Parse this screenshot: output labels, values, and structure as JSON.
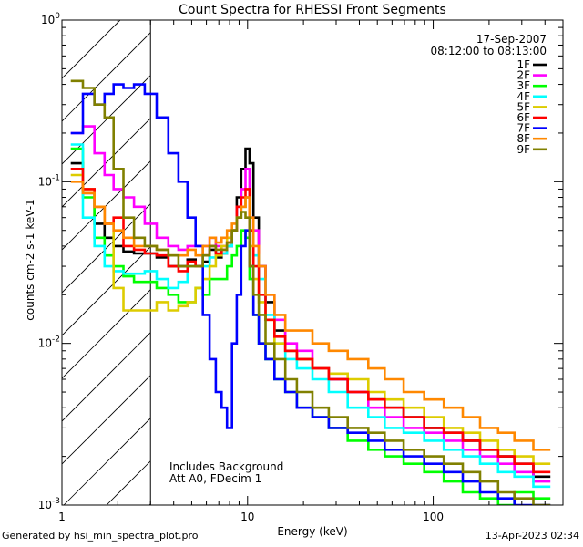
{
  "chart_data": {
    "type": "line",
    "title": "Count Spectra for RHESSI Front Segments",
    "xlabel": "Energy (keV)",
    "ylabel": "counts cm-2 s-1 keV-1",
    "xscale": "log",
    "yscale": "log",
    "xlim": [
      1,
      500
    ],
    "ylim": [
      0.001,
      1
    ],
    "x_tick_labels": [
      "1",
      "10",
      "100"
    ],
    "y_tick_labels": [
      {
        "base": "10",
        "exp": "0"
      },
      {
        "base": "10",
        "exp": "-1"
      },
      {
        "base": "10",
        "exp": "-2"
      },
      {
        "base": "10",
        "exp": "-3"
      }
    ],
    "date": "17-Sep-2007",
    "time_range": "08:12:00 to 08:13:00",
    "excluded_region_max_kev": 3,
    "annotations": [
      "Includes Background",
      "Att A0, FDecim 1"
    ],
    "energies": [
      1.2,
      1.4,
      1.6,
      1.8,
      2.0,
      2.3,
      2.6,
      3.0,
      3.5,
      4.0,
      4.5,
      5.0,
      5.5,
      6.0,
      6.5,
      7.0,
      7.5,
      8.0,
      8.5,
      9.0,
      9.5,
      10.0,
      10.5,
      11.0,
      12.0,
      13.0,
      15.0,
      17.0,
      20.0,
      25.0,
      30.0,
      40.0,
      50.0,
      60.0,
      80.0,
      100.0,
      130.0,
      160.0,
      200.0,
      250.0,
      300.0,
      400.0
    ],
    "series": [
      {
        "name": "1F",
        "color": "#000000",
        "values": [
          0.13,
          0.085,
          0.055,
          0.045,
          0.04,
          0.037,
          0.036,
          0.036,
          0.034,
          0.03,
          0.03,
          0.033,
          0.03,
          0.032,
          0.038,
          0.034,
          0.036,
          0.04,
          0.05,
          0.08,
          0.12,
          0.16,
          0.13,
          0.06,
          0.03,
          0.018,
          0.012,
          0.009,
          0.008,
          0.007,
          0.006,
          0.005,
          0.0045,
          0.004,
          0.0035,
          0.003,
          0.0028,
          0.0025,
          0.0022,
          0.002,
          0.0018,
          0.0015
        ]
      },
      {
        "name": "2F",
        "color": "#ff00ff",
        "values": [
          0.2,
          0.22,
          0.15,
          0.11,
          0.09,
          0.08,
          0.07,
          0.055,
          0.045,
          0.04,
          0.038,
          0.04,
          0.04,
          0.04,
          0.045,
          0.04,
          0.04,
          0.042,
          0.05,
          0.07,
          0.09,
          0.12,
          0.06,
          0.05,
          0.03,
          0.02,
          0.014,
          0.01,
          0.009,
          0.007,
          0.006,
          0.005,
          0.004,
          0.0035,
          0.003,
          0.0028,
          0.0025,
          0.0022,
          0.002,
          0.0018,
          0.0016,
          0.0014
        ]
      },
      {
        "name": "3F",
        "color": "#00ff00",
        "values": [
          0.16,
          0.08,
          0.045,
          0.035,
          0.03,
          0.026,
          0.024,
          0.024,
          0.022,
          0.02,
          0.018,
          0.018,
          0.022,
          0.02,
          0.025,
          0.025,
          0.025,
          0.03,
          0.035,
          0.04,
          0.05,
          0.045,
          0.025,
          0.015,
          0.01,
          0.008,
          0.006,
          0.005,
          0.004,
          0.0035,
          0.003,
          0.0025,
          0.0022,
          0.002,
          0.0018,
          0.0016,
          0.0014,
          0.0012,
          0.0011,
          0.001,
          0.0012,
          0.0011
        ]
      },
      {
        "name": "4F",
        "color": "#00ffff",
        "values": [
          0.17,
          0.06,
          0.04,
          0.03,
          0.028,
          0.027,
          0.027,
          0.028,
          0.025,
          0.022,
          0.024,
          0.03,
          0.03,
          0.03,
          0.034,
          0.036,
          0.036,
          0.04,
          0.05,
          0.06,
          0.07,
          0.08,
          0.05,
          0.035,
          0.025,
          0.015,
          0.01,
          0.008,
          0.007,
          0.006,
          0.005,
          0.004,
          0.0035,
          0.003,
          0.0028,
          0.0025,
          0.0022,
          0.002,
          0.0018,
          0.0016,
          0.0015,
          0.0013
        ]
      },
      {
        "name": "5F",
        "color": "#ddcc00",
        "values": [
          0.11,
          0.09,
          0.07,
          0.055,
          0.022,
          0.016,
          0.016,
          0.016,
          0.018,
          0.016,
          0.017,
          0.018,
          0.022,
          0.025,
          0.03,
          0.035,
          0.04,
          0.045,
          0.05,
          0.06,
          0.07,
          0.08,
          0.04,
          0.025,
          0.018,
          0.014,
          0.01,
          0.009,
          0.008,
          0.007,
          0.0065,
          0.006,
          0.005,
          0.0045,
          0.004,
          0.0035,
          0.003,
          0.0028,
          0.0025,
          0.0022,
          0.002,
          0.0018
        ]
      },
      {
        "name": "6F",
        "color": "#ff0000",
        "values": [
          0.12,
          0.09,
          0.07,
          0.055,
          0.06,
          0.04,
          0.038,
          0.036,
          0.035,
          0.03,
          0.028,
          0.032,
          0.03,
          0.035,
          0.04,
          0.036,
          0.038,
          0.042,
          0.05,
          0.07,
          0.08,
          0.09,
          0.05,
          0.03,
          0.02,
          0.014,
          0.011,
          0.009,
          0.008,
          0.007,
          0.006,
          0.005,
          0.0045,
          0.004,
          0.0035,
          0.003,
          0.0028,
          0.0025,
          0.0022,
          0.002,
          0.0018,
          0.0016
        ]
      },
      {
        "name": "7F",
        "color": "#0000ff",
        "values": [
          0.2,
          0.35,
          0.3,
          0.35,
          0.4,
          0.38,
          0.4,
          0.35,
          0.25,
          0.15,
          0.1,
          0.06,
          0.04,
          0.015,
          0.008,
          0.005,
          0.004,
          0.003,
          0.01,
          0.02,
          0.04,
          0.05,
          0.03,
          0.015,
          0.01,
          0.008,
          0.006,
          0.005,
          0.004,
          0.0035,
          0.003,
          0.0028,
          0.0025,
          0.0022,
          0.002,
          0.0018,
          0.0016,
          0.0014,
          0.0012,
          0.0011,
          0.001,
          0.001
        ]
      },
      {
        "name": "8F",
        "color": "#ff8800",
        "values": [
          0.1,
          0.085,
          0.07,
          0.055,
          0.05,
          0.045,
          0.04,
          0.04,
          0.038,
          0.035,
          0.035,
          0.038,
          0.035,
          0.04,
          0.045,
          0.042,
          0.045,
          0.05,
          0.055,
          0.06,
          0.07,
          0.08,
          0.06,
          0.04,
          0.03,
          0.02,
          0.015,
          0.012,
          0.012,
          0.01,
          0.009,
          0.008,
          0.007,
          0.006,
          0.005,
          0.0045,
          0.004,
          0.0035,
          0.003,
          0.0028,
          0.0025,
          0.0022
        ]
      },
      {
        "name": "9F",
        "color": "#808000",
        "values": [
          0.42,
          0.38,
          0.3,
          0.25,
          0.12,
          0.06,
          0.045,
          0.04,
          0.038,
          0.035,
          0.03,
          0.03,
          0.03,
          0.035,
          0.04,
          0.038,
          0.038,
          0.042,
          0.05,
          0.06,
          0.065,
          0.06,
          0.03,
          0.02,
          0.015,
          0.01,
          0.008,
          0.006,
          0.005,
          0.004,
          0.0035,
          0.003,
          0.0028,
          0.0025,
          0.0022,
          0.002,
          0.0018,
          0.0016,
          0.0014,
          0.0012,
          0.0011,
          0.001
        ]
      }
    ]
  },
  "footer": {
    "generated_by": "Generated by hsi_min_spectra_plot.pro",
    "timestamp": "13-Apr-2023 02:34"
  }
}
